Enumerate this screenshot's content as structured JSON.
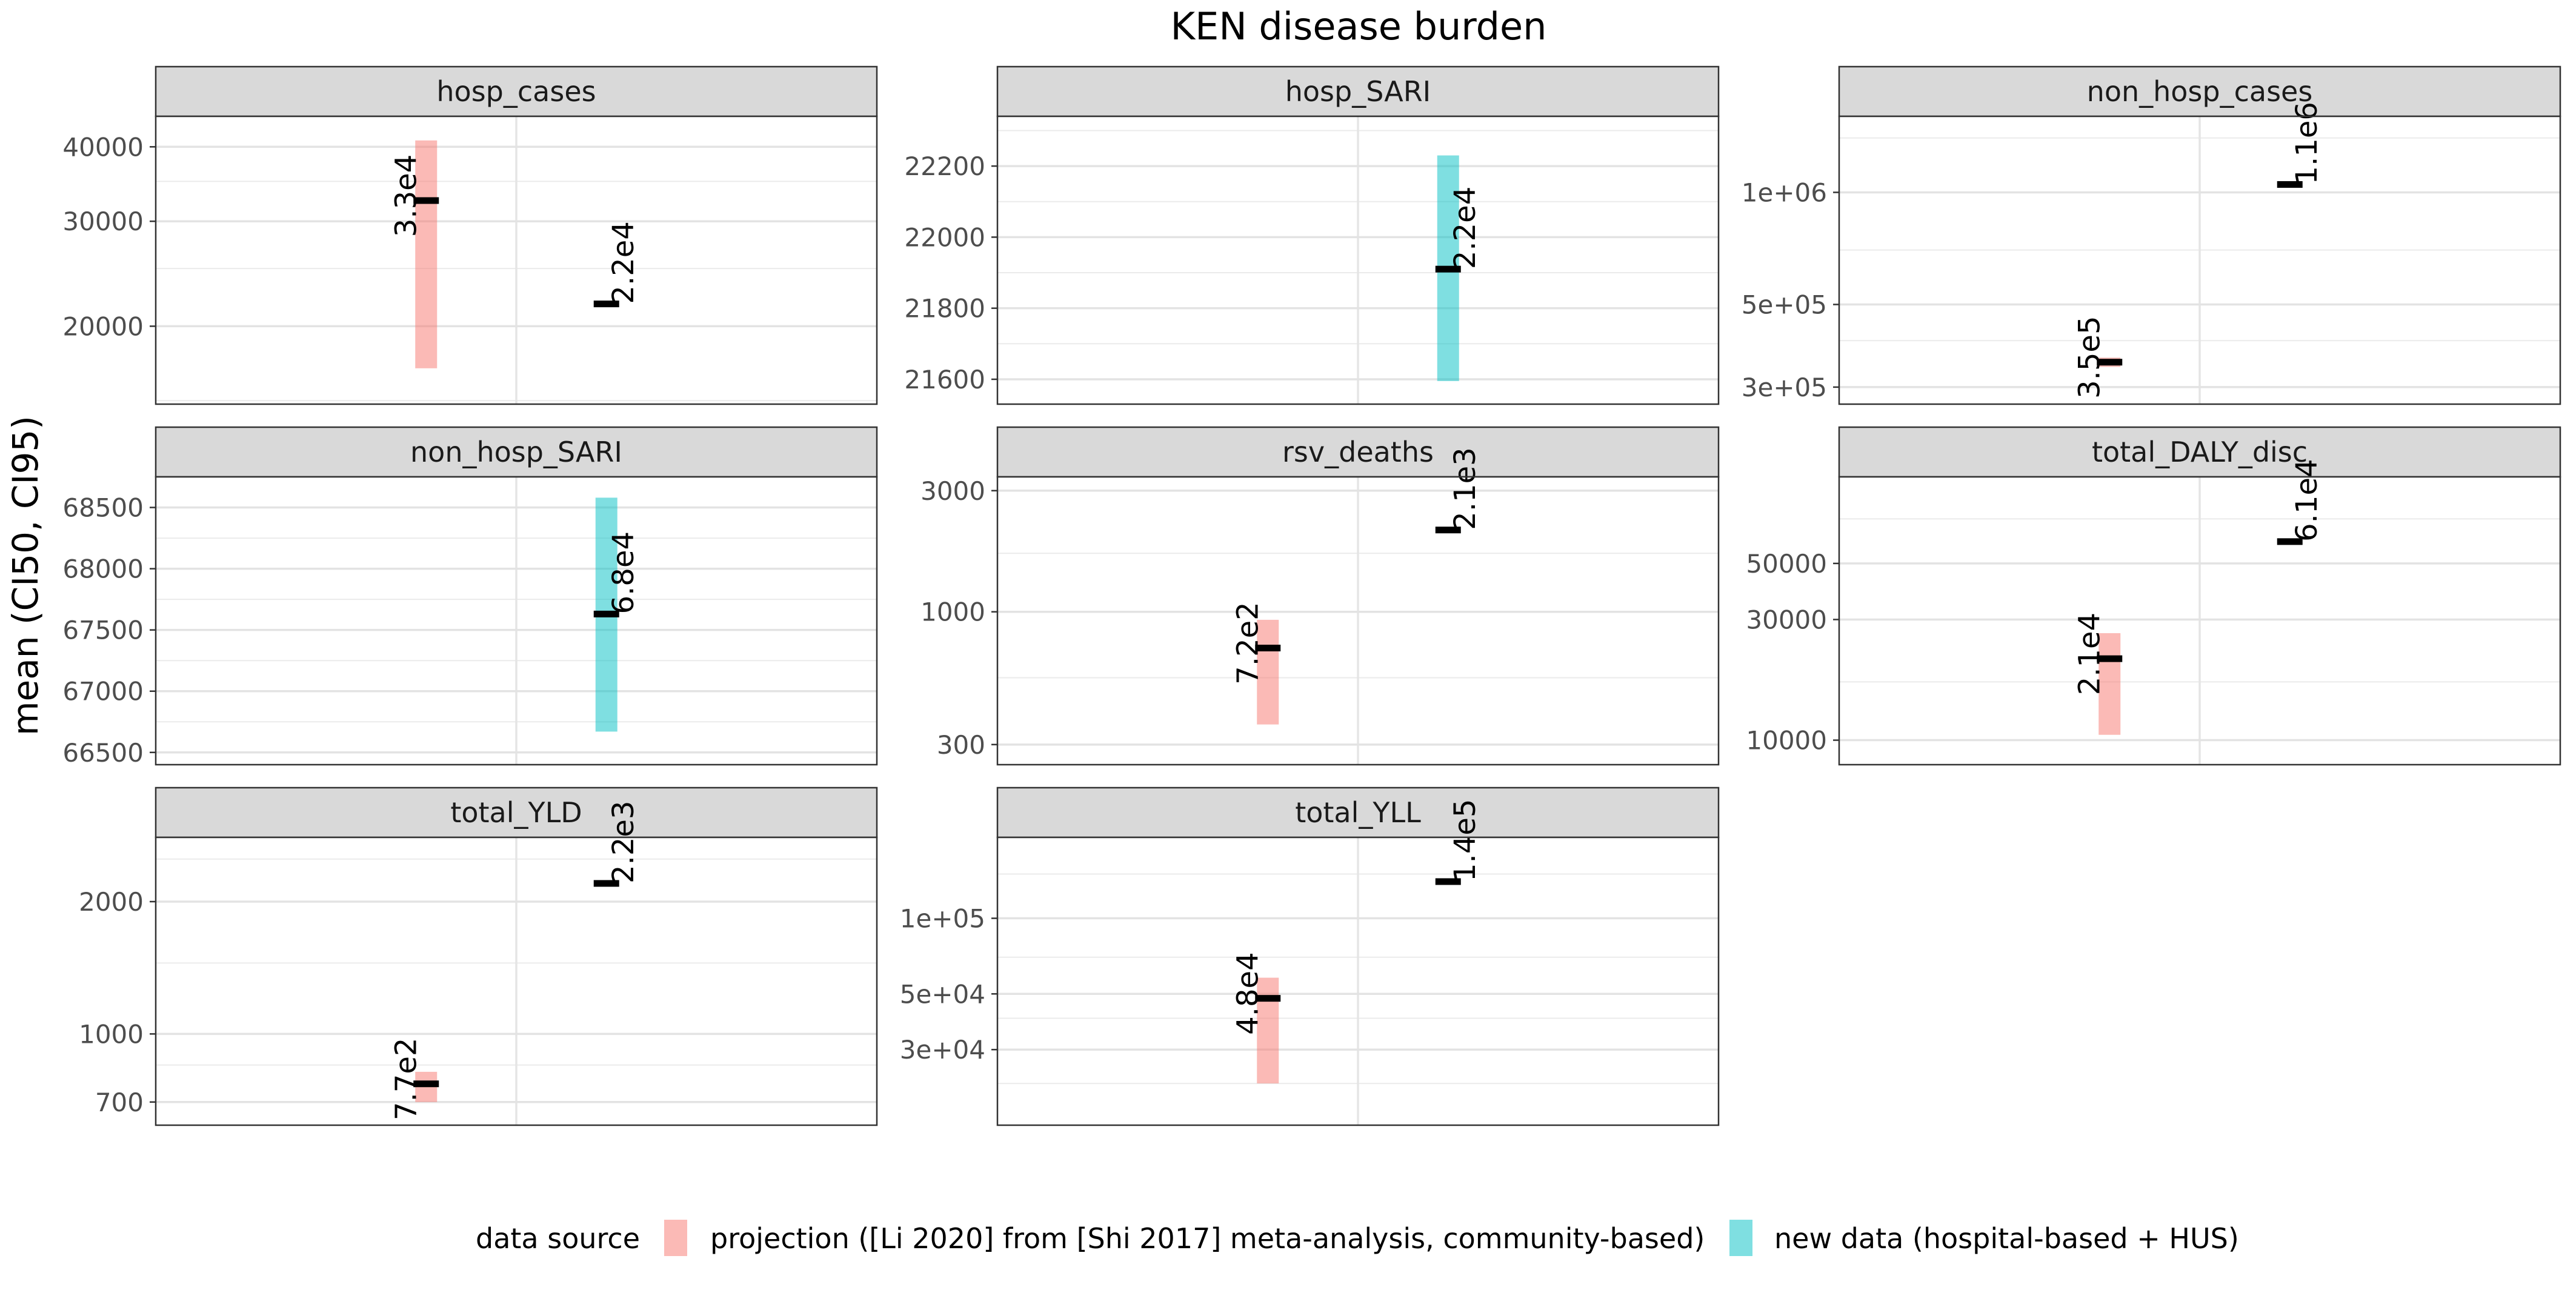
{
  "title": "KEN disease burden",
  "ylabel": "mean (CI50, CI95)",
  "legend": {
    "title": "data source",
    "position": "bottom",
    "entries": [
      {
        "label": "projection ([Li 2020] from [Shi 2017] meta-analysis, community-based)",
        "color": "#F8766D"
      },
      {
        "label": "new data (hospital-based + HUS)",
        "color": "#00BFC4"
      }
    ]
  },
  "chart_data": {
    "type": "pointrange",
    "grid": true,
    "facets": [
      {
        "name": "hosp_cases",
        "scale": "log",
        "ylim": [
          14800,
          45000
        ],
        "ticks": [
          20000,
          30000,
          40000
        ],
        "tick_labels": [
          "20000",
          "30000",
          "40000"
        ],
        "minor": [
          15000,
          25000,
          35000
        ],
        "points": [
          {
            "source": 0,
            "mean": 32500,
            "ci_low": 17000,
            "ci_high": 41000,
            "label": "3.3e4"
          },
          {
            "source": null,
            "mean": 21800,
            "label": "2.2e4"
          }
        ]
      },
      {
        "name": "hosp_SARI",
        "scale": "linear",
        "ylim": [
          21530,
          22340
        ],
        "ticks": [
          21600,
          21800,
          22000,
          22200
        ],
        "tick_labels": [
          "21600",
          "21800",
          "22000",
          "22200"
        ],
        "minor": [
          21700,
          21900,
          22100,
          22300
        ],
        "points": [
          {
            "source": 1,
            "mean": 21910,
            "ci_low": 21595,
            "ci_high": 22230,
            "label": "2.2e4"
          }
        ]
      },
      {
        "name": "non_hosp_cases",
        "scale": "log",
        "ylim": [
          270000,
          1600000
        ],
        "ticks": [
          300000,
          500000,
          1000000
        ],
        "tick_labels": [
          "3e+05",
          "5e+05",
          "1e+06"
        ],
        "minor": [
          400000,
          700000,
          1400000
        ],
        "points": [
          {
            "source": 0,
            "mean": 350000,
            "ci_low": 340000,
            "ci_high": 360000,
            "label": "3.5e5"
          },
          {
            "source": null,
            "mean": 1050000,
            "label": "1.1e6"
          }
        ]
      },
      {
        "name": "non_hosp_SARI",
        "scale": "linear",
        "ylim": [
          66400,
          68750
        ],
        "ticks": [
          66500,
          67000,
          67500,
          68000,
          68500
        ],
        "tick_labels": [
          "66500",
          "67000",
          "67500",
          "68000",
          "68500"
        ],
        "minor": [
          66750,
          67250,
          67750,
          68250,
          68750
        ],
        "points": [
          {
            "source": 1,
            "mean": 67630,
            "ci_low": 66670,
            "ci_high": 68580,
            "label": "6.8e4"
          }
        ]
      },
      {
        "name": "rsv_deaths",
        "scale": "log",
        "ylim": [
          250,
          3400
        ],
        "ticks": [
          300,
          1000,
          3000
        ],
        "tick_labels": [
          "300",
          "1000",
          "3000"
        ],
        "minor": [
          550,
          1700
        ],
        "points": [
          {
            "source": 0,
            "mean": 720,
            "ci_low": 360,
            "ci_high": 930,
            "label": "7.2e2"
          },
          {
            "source": null,
            "mean": 2100,
            "label": "2.1e3"
          }
        ]
      },
      {
        "name": "total_DALY_disc",
        "scale": "log",
        "ylim": [
          8000,
          110000
        ],
        "ticks": [
          10000,
          30000,
          50000
        ],
        "tick_labels": [
          "10000",
          "30000",
          "50000"
        ],
        "minor": [
          17000,
          75000
        ],
        "points": [
          {
            "source": 0,
            "mean": 21000,
            "ci_low": 10500,
            "ci_high": 26500,
            "label": "2.1e4"
          },
          {
            "source": null,
            "mean": 61000,
            "label": "6.1e4"
          }
        ]
      },
      {
        "name": "total_YLD",
        "scale": "log",
        "ylim": [
          620,
          2800
        ],
        "ticks": [
          700,
          1000,
          2000
        ],
        "tick_labels": [
          "700",
          "1000",
          "2000"
        ],
        "minor": [
          850,
          1450,
          2500
        ],
        "points": [
          {
            "source": 0,
            "mean": 770,
            "ci_low": 700,
            "ci_high": 820,
            "label": "7.7e2"
          },
          {
            "source": null,
            "mean": 2200,
            "label": "2.2e3"
          }
        ]
      },
      {
        "name": "total_YLL",
        "scale": "log",
        "ylim": [
          15000,
          210000
        ],
        "ticks": [
          30000,
          50000,
          100000
        ],
        "tick_labels": [
          "3e+04",
          "5e+04",
          "1e+05"
        ],
        "minor": [
          22000,
          40000,
          70000,
          150000
        ],
        "points": [
          {
            "source": 0,
            "mean": 48000,
            "ci_low": 22000,
            "ci_high": 58000,
            "label": "4.8e4"
          },
          {
            "source": null,
            "mean": 140000,
            "label": "1.4e5"
          }
        ]
      }
    ]
  }
}
